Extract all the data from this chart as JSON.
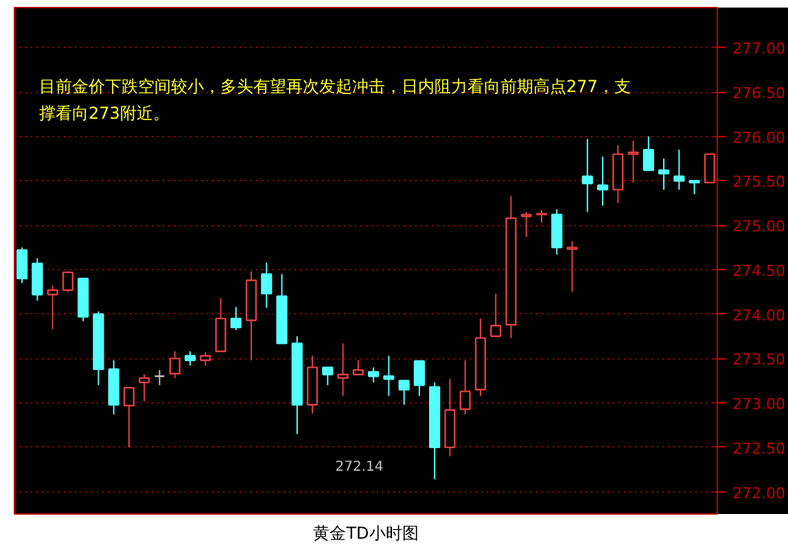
{
  "chart_data": {
    "type": "candlestick",
    "categories": [
      null,
      null,
      null,
      null,
      null,
      null,
      null,
      null,
      null,
      null,
      null,
      null,
      null,
      null,
      null,
      null,
      null,
      null,
      null,
      null,
      null,
      null,
      null,
      null,
      null,
      null,
      null,
      null,
      null,
      null,
      null,
      null,
      null,
      null,
      null,
      null,
      null,
      null,
      null,
      null,
      null,
      null,
      null,
      null,
      null,
      null
    ],
    "ohlc": [
      [
        274.72,
        274.75,
        274.35,
        274.4
      ],
      [
        274.57,
        274.63,
        274.15,
        274.22
      ],
      [
        274.22,
        274.32,
        273.83,
        274.27
      ],
      [
        274.27,
        274.48,
        274.25,
        274.47
      ],
      [
        274.4,
        274.4,
        273.92,
        273.97
      ],
      [
        274.0,
        274.03,
        273.2,
        273.38
      ],
      [
        273.38,
        273.48,
        272.87,
        272.98
      ],
      [
        272.97,
        273.17,
        272.5,
        273.17
      ],
      [
        273.23,
        273.32,
        273.02,
        273.28
      ],
      [
        273.3,
        273.37,
        273.2,
        273.3
      ],
      [
        273.33,
        273.58,
        273.28,
        273.5
      ],
      [
        273.53,
        273.58,
        273.42,
        273.48
      ],
      [
        273.48,
        273.57,
        273.42,
        273.53
      ],
      [
        273.58,
        274.18,
        273.58,
        273.95
      ],
      [
        273.95,
        274.08,
        273.82,
        273.85
      ],
      [
        273.93,
        274.48,
        273.48,
        274.38
      ],
      [
        274.45,
        274.58,
        274.07,
        274.23
      ],
      [
        274.2,
        274.45,
        273.67,
        273.67
      ],
      [
        273.67,
        273.75,
        272.65,
        272.98
      ],
      [
        272.98,
        273.53,
        272.88,
        273.4
      ],
      [
        273.4,
        273.4,
        273.2,
        273.32
      ],
      [
        273.28,
        273.67,
        273.08,
        273.32
      ],
      [
        273.32,
        273.48,
        273.32,
        273.37
      ],
      [
        273.35,
        273.4,
        273.23,
        273.3
      ],
      [
        273.3,
        273.53,
        273.08,
        273.27
      ],
      [
        273.25,
        273.25,
        272.98,
        273.15
      ],
      [
        273.47,
        273.48,
        273.08,
        273.2
      ],
      [
        273.18,
        273.23,
        272.14,
        272.5
      ],
      [
        272.5,
        273.27,
        272.4,
        272.92
      ],
      [
        272.93,
        273.48,
        272.87,
        273.13
      ],
      [
        273.15,
        273.95,
        273.08,
        273.73
      ],
      [
        273.75,
        274.23,
        273.75,
        273.87
      ],
      [
        273.88,
        275.33,
        273.73,
        275.08
      ],
      [
        275.1,
        275.15,
        274.87,
        275.12
      ],
      [
        275.12,
        275.17,
        275.03,
        275.13
      ],
      [
        275.12,
        275.18,
        274.67,
        274.75
      ],
      [
        274.73,
        274.82,
        274.25,
        274.75
      ],
      [
        275.55,
        275.97,
        275.15,
        275.47
      ],
      [
        275.45,
        275.77,
        275.22,
        275.4
      ],
      [
        275.4,
        275.9,
        275.25,
        275.8
      ],
      [
        275.8,
        275.95,
        275.48,
        275.82
      ],
      [
        275.85,
        276.0,
        275.62,
        275.62
      ],
      [
        275.62,
        275.75,
        275.4,
        275.58
      ],
      [
        275.55,
        275.85,
        275.4,
        275.5
      ],
      [
        275.5,
        275.5,
        275.35,
        275.48
      ],
      [
        275.48,
        275.8,
        275.48,
        275.8
      ]
    ],
    "colors": [
      "#54ffff",
      "#54ffff",
      "#e04040",
      "#e04040",
      "#54ffff",
      "#54ffff",
      "#54ffff",
      "#e04040",
      "#e04040",
      "#c0c0c0",
      "#e04040",
      "#54ffff",
      "#e04040",
      "#e04040",
      "#54ffff",
      "#e04040",
      "#54ffff",
      "#54ffff",
      "#54ffff",
      "#e04040",
      "#54ffff",
      "#e04040",
      "#e04040",
      "#54ffff",
      "#54ffff",
      "#54ffff",
      "#54ffff",
      "#54ffff",
      "#e04040",
      "#e04040",
      "#e04040",
      "#e04040",
      "#e04040",
      "#e04040",
      "#e04040",
      "#54ffff",
      "#e04040",
      "#54ffff",
      "#54ffff",
      "#e04040",
      "#e04040",
      "#54ffff",
      "#54ffff",
      "#54ffff",
      "#54ffff",
      "#e04040"
    ],
    "ylim": [
      271.75,
      277.45
    ],
    "yticks": [
      {
        "value": 272,
        "label": "272.00"
      },
      {
        "value": 272.5,
        "label": "272.50"
      },
      {
        "value": 273,
        "label": "273.00"
      },
      {
        "value": 273.5,
        "label": "273.50"
      },
      {
        "value": 274,
        "label": "274.00"
      },
      {
        "value": 274.5,
        "label": "274.50"
      },
      {
        "value": 275,
        "label": "275.00"
      },
      {
        "value": 275.5,
        "label": "275.50"
      },
      {
        "value": 276,
        "label": "276.00"
      },
      {
        "value": 276.5,
        "label": "276.50"
      },
      {
        "value": 277,
        "label": "277.00"
      }
    ],
    "grid": "y",
    "annotations": [
      "目前金价下跌空间较小，多头有望再次发起冲击，日内阻力看向前期高点277，支撑看向273附近。",
      "272.14",
      "黄金TD小时图"
    ]
  }
}
